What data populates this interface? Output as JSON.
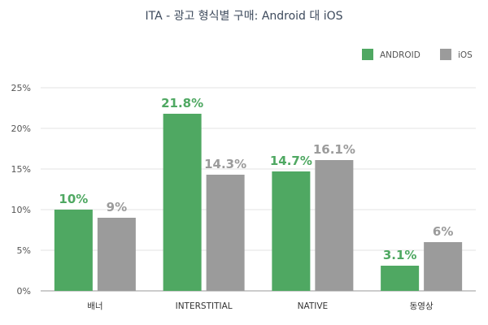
{
  "chart_data": {
    "type": "bar",
    "title": "ITA - 광고 형식별 구매: Android 대 iOS",
    "categories": [
      "배너",
      "INTERSTITIAL",
      "NATIVE",
      "동영상"
    ],
    "series": [
      {
        "name": "ANDROID",
        "values": [
          10,
          21.8,
          14.7,
          3.1
        ],
        "labels": [
          "10%",
          "21.8%",
          "14.7%",
          "3.1%"
        ],
        "color": "#4fa862"
      },
      {
        "name": "iOS",
        "values": [
          9,
          14.3,
          16.1,
          6
        ],
        "labels": [
          "9%",
          "14.3%",
          "16.1%",
          "6%"
        ],
        "color": "#9b9b9b"
      }
    ],
    "ylim": [
      0,
      25
    ],
    "yticks": [
      "0%",
      "5%",
      "10%",
      "15%",
      "20%",
      "25%"
    ],
    "grid": true,
    "legend_position": "top-right"
  }
}
